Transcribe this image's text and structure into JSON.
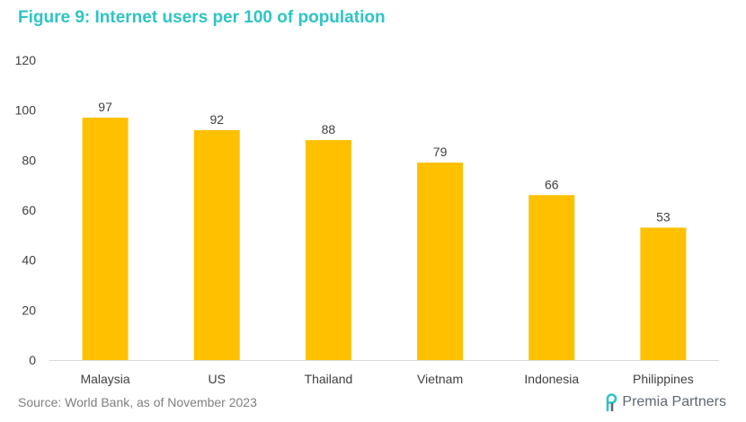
{
  "title": "Figure 9: Internet users per 100 of population",
  "source": "Source: World Bank, as of November 2023",
  "brand": {
    "name": "Premia Partners",
    "icon": "premia-logo-icon"
  },
  "colors": {
    "title": "#2ec4c6",
    "bar": "#ffc000",
    "text": "#404040",
    "source": "#7f7f7f",
    "axis": "#d9d9d9"
  },
  "chart_data": {
    "type": "bar",
    "title": "Figure 9: Internet users per 100 of population",
    "xlabel": "",
    "ylabel": "",
    "categories": [
      "Malaysia",
      "US",
      "Thailand",
      "Vietnam",
      "Indonesia",
      "Philippines"
    ],
    "values": [
      97,
      92,
      88,
      79,
      66,
      53
    ],
    "data_labels": [
      "97",
      "92",
      "88",
      "79",
      "66",
      "53"
    ],
    "ylim": [
      0,
      120
    ],
    "yticks": [
      0,
      20,
      40,
      60,
      80,
      100,
      120
    ],
    "grid": false,
    "legend": "none"
  }
}
